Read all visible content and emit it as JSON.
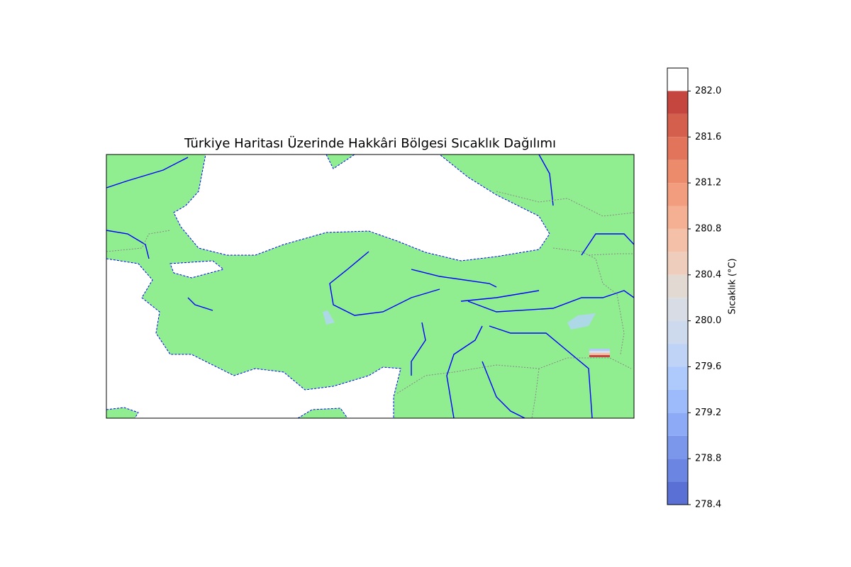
{
  "title": "Türkiye Haritası Üzerinde Hakkâri Bölgesi Sıcaklık Dağılımı",
  "colorbar": {
    "label": "Sıcaklık (°C)",
    "levels": [
      278.4,
      278.6,
      278.8,
      279.0,
      279.2,
      279.4,
      279.6,
      279.8,
      280.0,
      280.2,
      280.4,
      280.6,
      280.8,
      281.0,
      281.2,
      281.4,
      281.6,
      281.8,
      282.0,
      282.2
    ],
    "colors": [
      "#5a70d4",
      "#6b85e2",
      "#7b97ec",
      "#8caaf5",
      "#9dbbfa",
      "#aec9fc",
      "#bfd3f6",
      "#cdd9ec",
      "#d8dce4",
      "#e3d9d3",
      "#eecdbd",
      "#f4c0a8",
      "#f5b093",
      "#f39d7f",
      "#ec8a6c",
      "#e1745b",
      "#d45f4d",
      "#c5463f"
    ],
    "ticks": [
      278.4,
      278.8,
      279.2,
      279.6,
      {
        "value": 280,
        "label": "280.0"
      },
      280.4,
      280.8,
      281.2,
      281.6,
      {
        "value": 282,
        "label": "282.0"
      }
    ]
  }
}
